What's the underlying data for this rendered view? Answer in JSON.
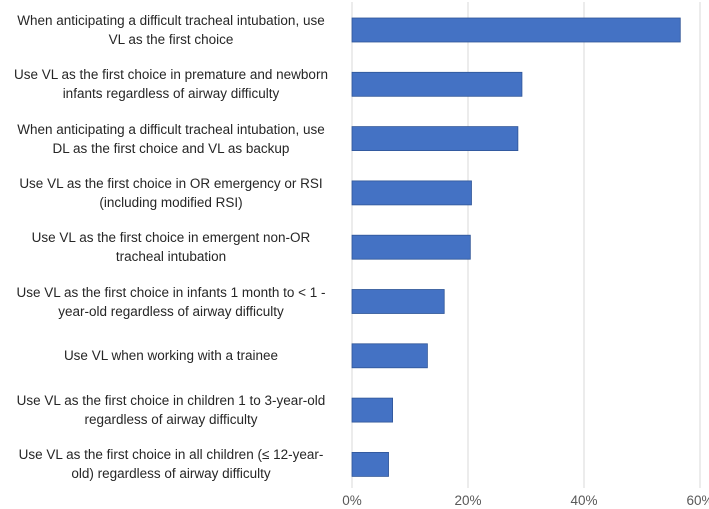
{
  "chart_data": {
    "type": "bar",
    "orientation": "horizontal",
    "categories": [
      [
        "When anticipating a difficult tracheal intubation, use",
        "VL as the first choice"
      ],
      [
        "Use VL as the first choice in premature and newborn",
        "infants regardless of airway difficulty"
      ],
      [
        "When anticipating a difficult tracheal intubation, use",
        "DL as the first choice and VL as backup"
      ],
      [
        "Use VL as the first choice in OR emergency or RSI",
        "(including modified RSI)"
      ],
      [
        "Use VL as the first choice in emergent non-OR",
        "tracheal intubation"
      ],
      [
        "Use VL as the first choice in infants 1 month to < 1 -",
        "year-old regardless of airway difficulty"
      ],
      [
        "Use VL when working with a trainee"
      ],
      [
        "Use VL as the first choice in children 1 to 3-year-old",
        "regardless of airway difficulty"
      ],
      [
        "Use VL as the first choice in all children (≤ 12-year-",
        "old) regardless of airway difficulty"
      ]
    ],
    "values": [
      56.6,
      29.3,
      28.6,
      20.6,
      20.4,
      15.9,
      13.0,
      7.0,
      6.3
    ],
    "x_ticks": [
      "0%",
      "20%",
      "40%",
      "60%"
    ],
    "xlim": [
      0,
      60
    ],
    "grid": true,
    "bar_color": "#4472c4"
  }
}
